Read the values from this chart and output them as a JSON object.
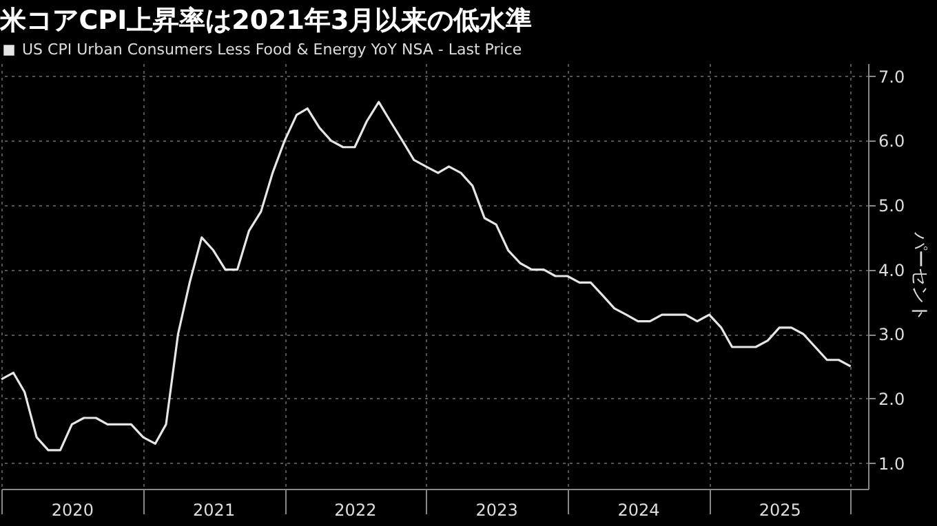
{
  "chart_data": {
    "type": "line",
    "title": "米コアCPI上昇率は2021年3月以来の低水準",
    "ylabel": "パーセント",
    "x": [
      "2020-01",
      "2020-02",
      "2020-03",
      "2020-04",
      "2020-05",
      "2020-06",
      "2020-07",
      "2020-08",
      "2020-09",
      "2020-10",
      "2020-11",
      "2020-12",
      "2021-01",
      "2021-02",
      "2021-03",
      "2021-04",
      "2021-05",
      "2021-06",
      "2021-07",
      "2021-08",
      "2021-09",
      "2021-10",
      "2021-11",
      "2021-12",
      "2022-01",
      "2022-02",
      "2022-03",
      "2022-04",
      "2022-05",
      "2022-06",
      "2022-07",
      "2022-08",
      "2022-09",
      "2022-10",
      "2022-11",
      "2022-12",
      "2023-01",
      "2023-02",
      "2023-03",
      "2023-04",
      "2023-05",
      "2023-06",
      "2023-07",
      "2023-08",
      "2023-09",
      "2023-10",
      "2023-11",
      "2023-12",
      "2024-01",
      "2024-02",
      "2024-03",
      "2024-04",
      "2024-05",
      "2024-06",
      "2024-07",
      "2024-08",
      "2024-09",
      "2024-10",
      "2024-11",
      "2024-12",
      "2025-01",
      "2025-02",
      "2025-03",
      "2025-04",
      "2025-05",
      "2025-06",
      "2025-07",
      "2025-08",
      "2025-09",
      "2025-11",
      "2025-12",
      "2026-01"
    ],
    "series": [
      {
        "name": "US CPI Urban Consumers Less Food & Energy YoY NSA - Last Price",
        "color": "#e6e6e6",
        "values": [
          2.3,
          2.4,
          2.1,
          1.4,
          1.2,
          1.2,
          1.6,
          1.7,
          1.7,
          1.6,
          1.6,
          1.6,
          1.4,
          1.3,
          1.6,
          3.0,
          3.8,
          4.5,
          4.3,
          4.0,
          4.0,
          4.6,
          4.9,
          5.5,
          6.0,
          6.4,
          6.5,
          6.2,
          6.0,
          5.9,
          5.9,
          6.3,
          6.6,
          6.3,
          6.0,
          5.7,
          5.6,
          5.5,
          5.6,
          5.5,
          5.3,
          4.8,
          4.7,
          4.3,
          4.1,
          4.0,
          4.0,
          3.9,
          3.9,
          3.8,
          3.8,
          3.6,
          3.4,
          3.3,
          3.2,
          3.2,
          3.3,
          3.3,
          3.3,
          3.2,
          3.3,
          3.1,
          2.8,
          2.8,
          2.8,
          2.9,
          3.1,
          3.1,
          3.0,
          2.6,
          2.6,
          2.5
        ]
      }
    ],
    "xlim": [
      "2020-01-01",
      "2026-02-15"
    ],
    "xticks": [
      {
        "value": "2020-01-01",
        "label": null
      },
      {
        "value": "2020-07-01",
        "label": "2020"
      },
      {
        "value": "2021-01-01",
        "label": null
      },
      {
        "value": "2021-07-01",
        "label": "2021"
      },
      {
        "value": "2022-01-01",
        "label": null
      },
      {
        "value": "2022-07-01",
        "label": "2022"
      },
      {
        "value": "2023-01-01",
        "label": null
      },
      {
        "value": "2023-07-01",
        "label": "2023"
      },
      {
        "value": "2024-01-01",
        "label": null
      },
      {
        "value": "2024-07-01",
        "label": "2024"
      },
      {
        "value": "2025-01-01",
        "label": null
      },
      {
        "value": "2025-07-01",
        "label": "2025"
      },
      {
        "value": "2026-01-01",
        "label": null
      }
    ],
    "ylim": [
      0.6,
      7.2
    ],
    "yticks": [
      {
        "value": 1,
        "label": "1.0"
      },
      {
        "value": 2,
        "label": "2.0"
      },
      {
        "value": 3,
        "label": "3.0"
      },
      {
        "value": 4,
        "label": "4.0"
      },
      {
        "value": 5,
        "label": "5.0"
      },
      {
        "value": 6,
        "label": "6.0"
      },
      {
        "value": 7,
        "label": "7.0"
      }
    ],
    "grid": true,
    "legend": "top left",
    "line_style": "solid"
  }
}
